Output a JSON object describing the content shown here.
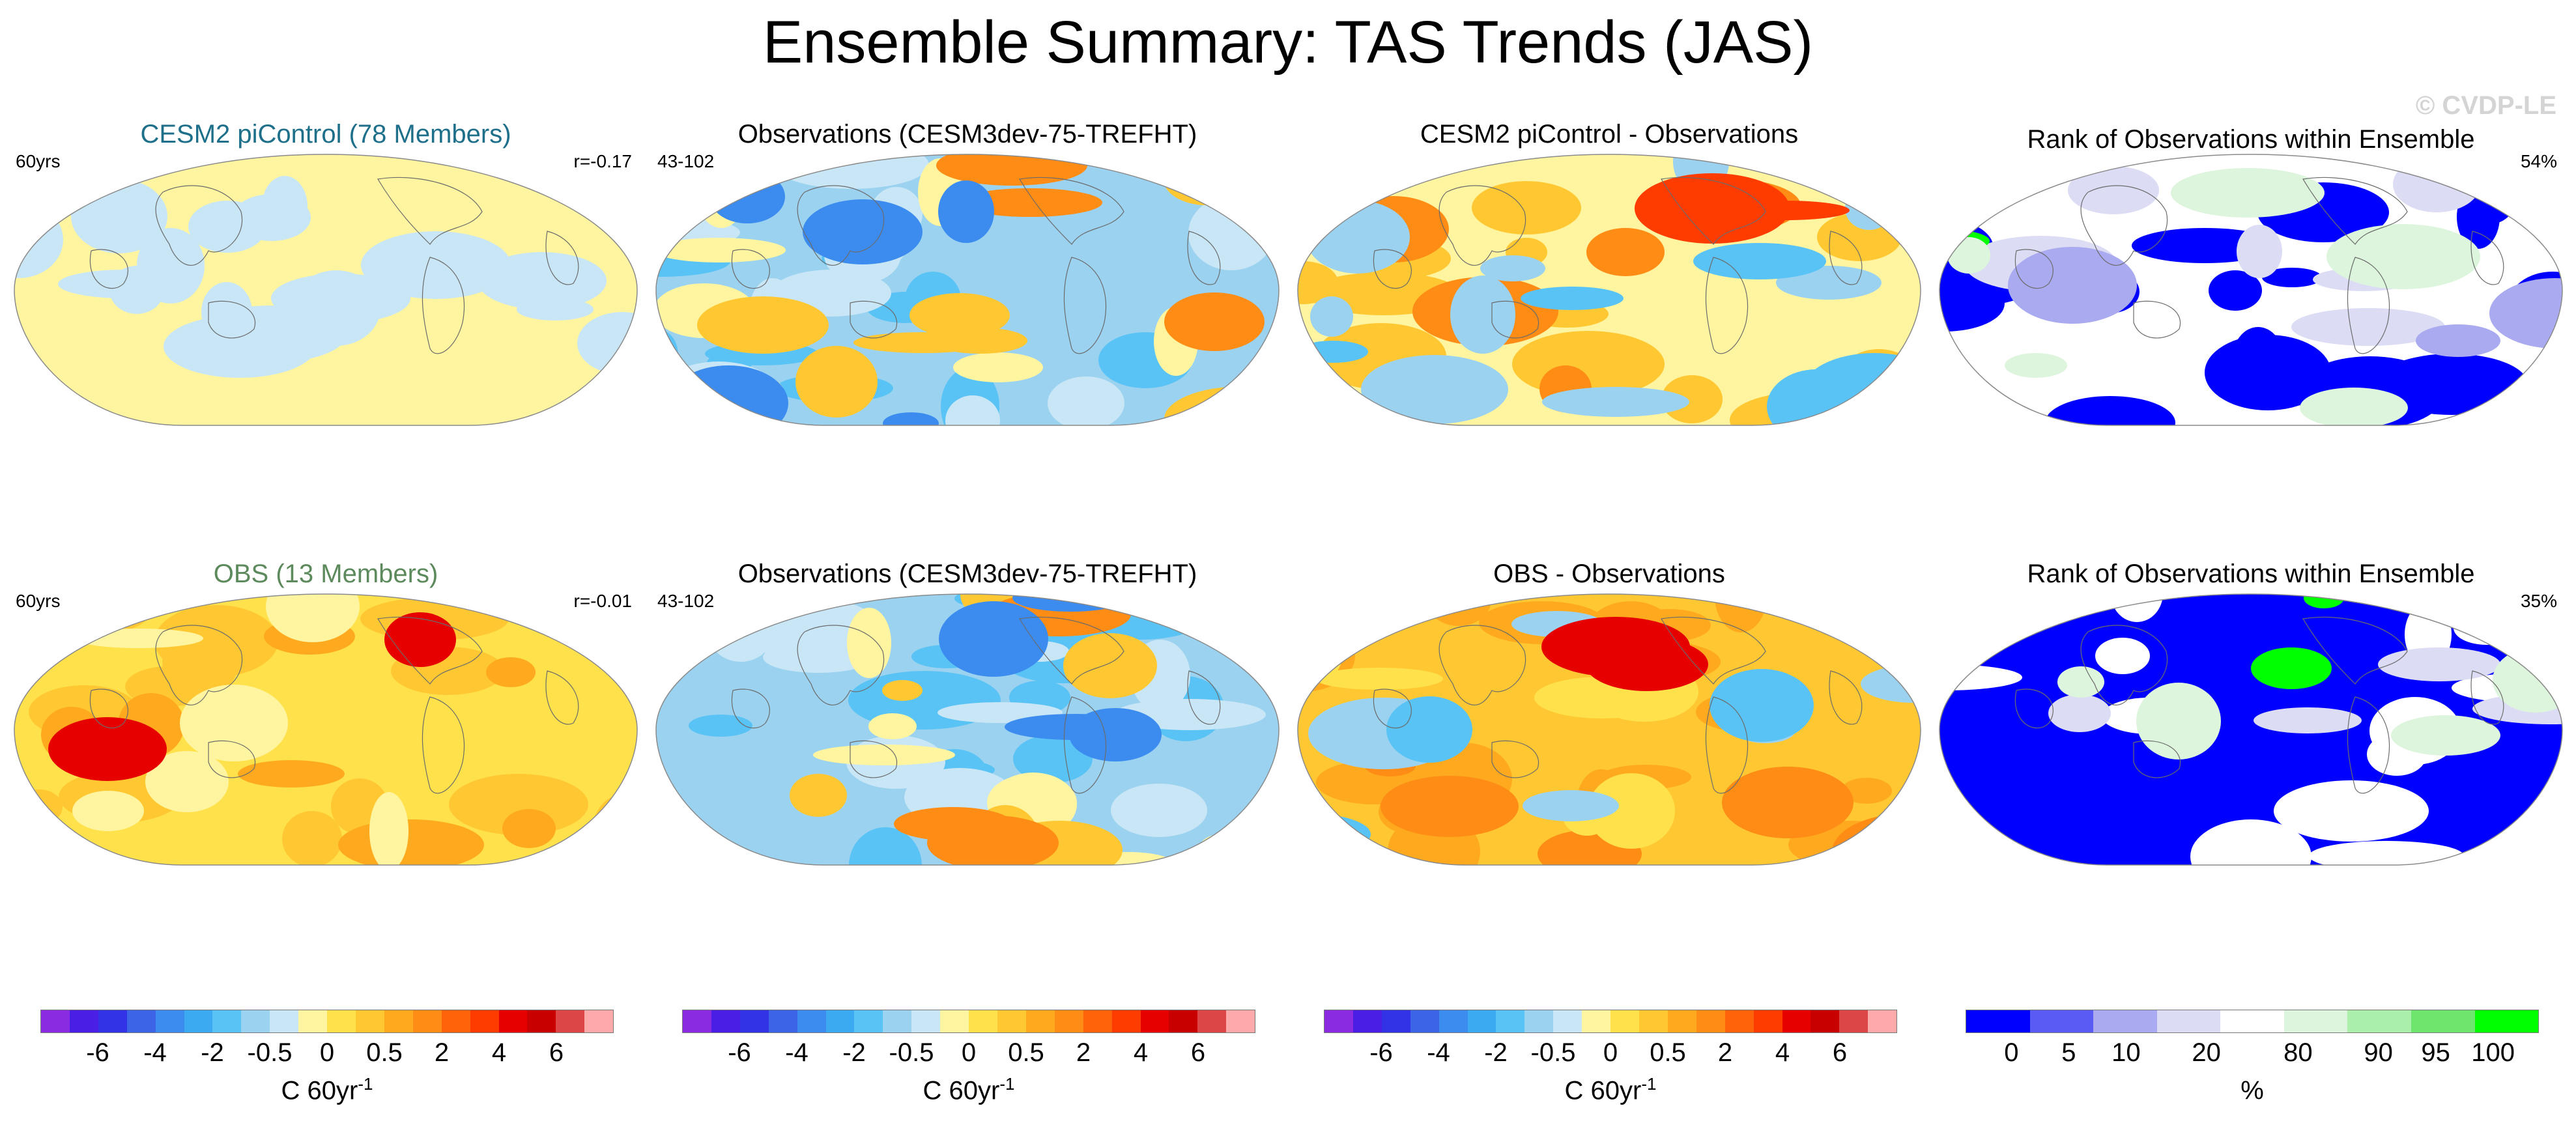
{
  "title": "Ensemble Summary: TAS Trends (JAS)",
  "watermark": "© CVDP-LE",
  "rows": [
    {
      "panels": [
        {
          "title": "CESM2 piControl (78 Members)",
          "title_color": "#1e6f8a",
          "left": "60yrs",
          "right": "r=-0.17",
          "palette": "model_top"
        },
        {
          "title": "Observations (CESM3dev-75-TREFHT)",
          "title_color": "#000000",
          "left": "43-102",
          "right": "",
          "palette": "obs"
        },
        {
          "title": "CESM2 piControl - Observations",
          "title_color": "#000000",
          "left": "",
          "right": "",
          "palette": "diff_top"
        },
        {
          "title": "Rank of Observations within Ensemble",
          "title_color": "#000000",
          "left": "",
          "right": "54%",
          "palette": "rank_top"
        }
      ]
    },
    {
      "panels": [
        {
          "title": "OBS (13 Members)",
          "title_color": "#5d8a5d",
          "left": "60yrs",
          "right": "r=-0.01",
          "palette": "model_bot"
        },
        {
          "title": "Observations (CESM3dev-75-TREFHT)",
          "title_color": "#000000",
          "left": "43-102",
          "right": "",
          "palette": "obs"
        },
        {
          "title": "OBS - Observations",
          "title_color": "#000000",
          "left": "",
          "right": "",
          "palette": "diff_bot"
        },
        {
          "title": "Rank of Observations within Ensemble",
          "title_color": "#000000",
          "left": "",
          "right": "35%",
          "palette": "rank_bot"
        }
      ]
    }
  ],
  "colorbars": [
    {
      "type": "temp",
      "ticks": [
        "-6",
        "-4",
        "-2",
        "-0.5",
        "0",
        "0.5",
        "2",
        "4",
        "6"
      ],
      "label": "C 60yr",
      "label_sup": "-1"
    },
    {
      "type": "temp",
      "ticks": [
        "-6",
        "-4",
        "-2",
        "-0.5",
        "0",
        "0.5",
        "2",
        "4",
        "6"
      ],
      "label": "C 60yr",
      "label_sup": "-1"
    },
    {
      "type": "temp",
      "ticks": [
        "-6",
        "-4",
        "-2",
        "-0.5",
        "0",
        "0.5",
        "2",
        "4",
        "6"
      ],
      "label": "C 60yr",
      "label_sup": "-1"
    },
    {
      "type": "rank",
      "ticks": [
        "0",
        "5",
        "10",
        "20",
        "80",
        "90",
        "95",
        "100"
      ],
      "label": "%",
      "label_sup": ""
    }
  ],
  "temp_colors": [
    "#8a2be2",
    "#4b1ee6",
    "#3232e6",
    "#3c64e6",
    "#3c8cf0",
    "#3caaf0",
    "#5ac3f5",
    "#9bd2f0",
    "#c8e6f5",
    "#fff5a0",
    "#ffe14b",
    "#ffc832",
    "#ffaa1e",
    "#ff8c14",
    "#ff640a",
    "#ff3c00",
    "#e60000",
    "#c80000",
    "#dc4646",
    "#ffaaaa"
  ],
  "rank_colors": [
    "#0000ff",
    "#5a5af5",
    "#aaaaf0",
    "#dcdcf5",
    "#ffffff",
    "#dcf5dc",
    "#aaf0aa",
    "#6ee66e",
    "#00ff00"
  ]
}
